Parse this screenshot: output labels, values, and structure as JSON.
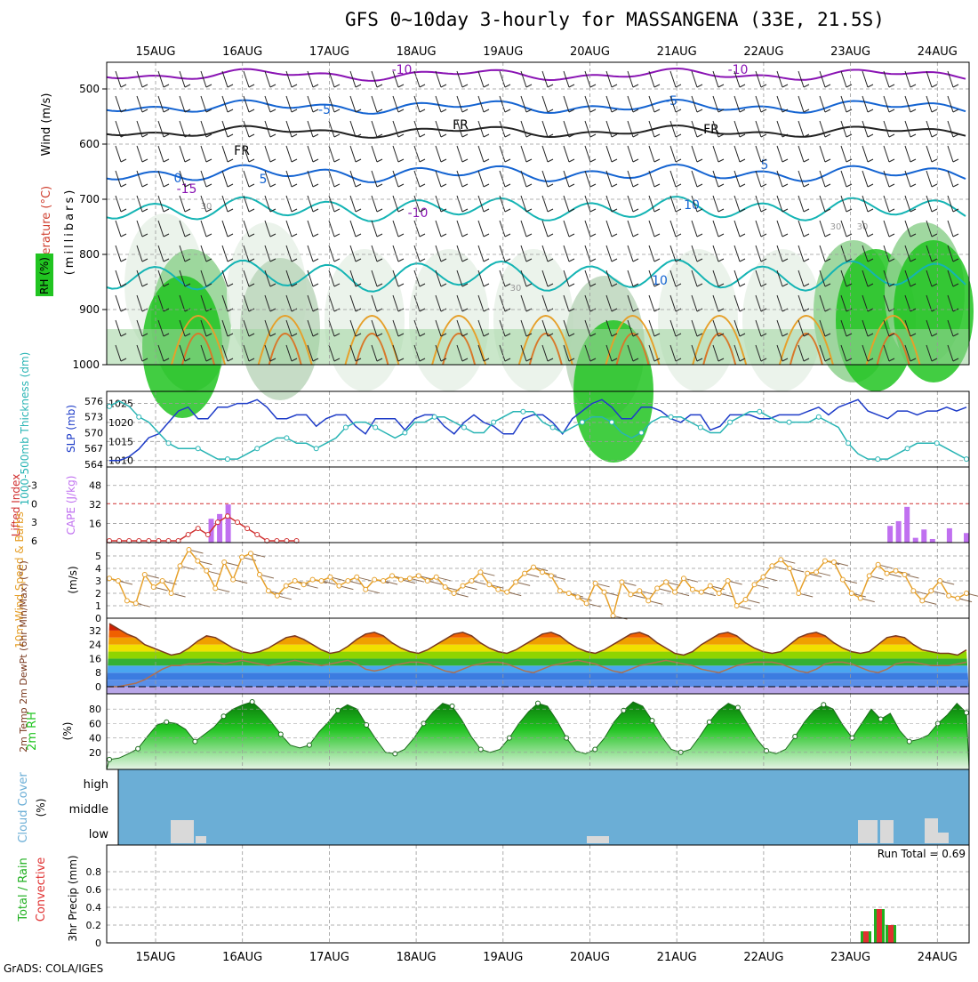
{
  "page": {
    "title": "GFS 0~10day 3-hourly for MASSANGENA (33E, 21.5S)",
    "footer": "GrADS: COLA/IGES"
  },
  "colors": {
    "rh_green": "#21c421",
    "temp_purple": "#8a14b4",
    "temp_blue": "#1464d2",
    "temp_cyan": "#14b4b4",
    "temp_orange": "#e6a02a",
    "slp_blue": "#1e3cc8",
    "thickness_cyan": "#28b4b4",
    "cape_purple": "#c070f0",
    "li_red": "#d03030",
    "wind_orange": "#e6a02a",
    "cloud_blue": "#6baed6",
    "cloud_gray": "#d9d9d9",
    "precip_green": "#20b020",
    "precip_red": "#e03030"
  },
  "chart_data": [
    {
      "id": "upper",
      "type": "contour-time-height",
      "date_labels": [
        "15AUG",
        "16AUG",
        "17AUG",
        "18AUG",
        "19AUG",
        "20AUG",
        "21AUG",
        "22AUG",
        "23AUG",
        "24AUG"
      ],
      "y_ticks": [
        "500",
        "600",
        "700",
        "800",
        "900",
        "1000"
      ],
      "y_values": [
        500,
        600,
        700,
        800,
        900,
        1000
      ],
      "ylabel_wind": "Wind (m/s)",
      "ylabel_temp": "Temperature (°C)",
      "ylabel_rh": "RH (%)",
      "ylabel_units": "(millibars)",
      "contour_labels": [
        "-10",
        "-10",
        "-5",
        "-5",
        "FR",
        "FR",
        "FR",
        "0",
        "5",
        "5",
        "-10",
        "10",
        "10",
        "-15",
        "30",
        "30",
        "30",
        "30"
      ],
      "temp_levels": [
        -10,
        -5,
        0,
        5,
        10,
        15
      ]
    },
    {
      "id": "slp",
      "type": "line",
      "ylabel_left": "1000-500mb Thickness (dm)",
      "ylabel_right": "SLP (mb)",
      "left_ticks": [
        "576",
        "573",
        "570",
        "567",
        "564"
      ],
      "right_ticks": [
        "1025",
        "1020",
        "1015",
        "1010"
      ],
      "slp": [
        1010,
        1010,
        1011,
        1013,
        1016,
        1017,
        1020,
        1023,
        1024,
        1021,
        1021,
        1024,
        1024,
        1025,
        1025,
        1026,
        1024,
        1021,
        1021,
        1022,
        1022,
        1019,
        1021,
        1022,
        1022,
        1019,
        1017,
        1021,
        1021,
        1021,
        1018,
        1021,
        1022,
        1022,
        1019,
        1017,
        1020,
        1022,
        1020,
        1019,
        1017,
        1017,
        1021,
        1022,
        1022,
        1020,
        1017,
        1021,
        1023,
        1025,
        1026,
        1024,
        1021,
        1021,
        1024,
        1024,
        1023,
        1021,
        1020,
        1022,
        1022,
        1018,
        1019,
        1022,
        1022,
        1022,
        1021,
        1021,
        1022,
        1022,
        1022,
        1023,
        1024,
        1022,
        1024,
        1025,
        1026,
        1023,
        1022,
        1021,
        1023,
        1023,
        1022,
        1023,
        1023,
        1024,
        1023,
        1024
      ],
      "thickness": [
        575,
        576,
        575,
        573,
        572,
        570,
        568,
        567,
        567,
        567,
        566,
        565,
        565,
        565,
        566,
        567,
        568,
        569,
        569,
        568,
        568,
        567,
        568,
        569,
        571,
        572,
        572,
        571,
        570,
        569,
        570,
        572,
        572,
        573,
        573,
        572,
        571,
        570,
        570,
        572,
        573,
        574,
        574,
        574,
        572,
        571,
        570,
        571,
        572,
        573,
        573,
        572,
        570,
        569,
        570,
        572,
        573,
        573,
        573,
        572,
        571,
        570,
        570,
        572,
        573,
        574,
        574,
        573,
        572,
        572,
        572,
        572,
        573,
        572,
        571,
        568,
        566,
        565,
        565,
        565,
        566,
        567,
        568,
        568,
        568,
        567,
        566,
        565
      ]
    },
    {
      "id": "cape",
      "type": "bar+line",
      "ylabel_left": "Lifted Index",
      "ylabel_right": "CAPE (J/kg)",
      "li_ticks": [
        "-3",
        "0",
        "3",
        "6"
      ],
      "cape_ticks": [
        "48",
        "32",
        "16"
      ],
      "cape": [
        0,
        0,
        0,
        0,
        0,
        0,
        0,
        0,
        0,
        0,
        0,
        0,
        20,
        24,
        32,
        0,
        0,
        0,
        0,
        0,
        0,
        0,
        0,
        0,
        0,
        0,
        0,
        0,
        0,
        0,
        0,
        0,
        0,
        0,
        0,
        0,
        0,
        0,
        0,
        0,
        0,
        0,
        0,
        0,
        0,
        0,
        0,
        0,
        0,
        0,
        0,
        0,
        0,
        0,
        0,
        0,
        0,
        0,
        0,
        0,
        0,
        0,
        0,
        0,
        0,
        0,
        0,
        0,
        0,
        0,
        0,
        0,
        0,
        0,
        0,
        0,
        0,
        0,
        0,
        0,
        0,
        0,
        0,
        0,
        0,
        0,
        0,
        0,
        0,
        0,
        0,
        0,
        14,
        18,
        30,
        4,
        11,
        3,
        0,
        12,
        0,
        8
      ],
      "li": [
        6,
        6,
        6,
        6,
        6,
        6,
        6,
        6,
        5,
        4,
        5,
        3,
        2,
        3,
        4,
        5,
        6,
        6,
        6,
        6,
        6,
        6,
        6,
        6,
        6,
        6,
        6,
        6,
        6,
        6,
        6,
        6,
        6,
        6,
        6,
        6,
        6,
        6,
        6,
        6,
        6,
        6,
        6,
        6,
        6,
        6,
        6,
        6,
        6,
        6,
        6,
        6,
        6,
        6,
        6,
        6,
        6,
        6,
        6,
        6,
        6,
        6,
        6,
        6,
        6,
        6,
        6,
        6,
        6,
        6,
        6,
        6,
        6,
        6,
        6,
        6,
        6,
        6,
        6,
        6,
        6,
        6,
        6,
        6,
        6,
        6,
        6,
        6
      ]
    },
    {
      "id": "wind10m",
      "type": "line",
      "ylabel": "10m Wind Speed & Barbs",
      "units": "(m/s)",
      "ticks": [
        "5",
        "4",
        "3",
        "2",
        "1",
        "0"
      ],
      "speed": [
        3.2,
        3.0,
        1.4,
        1.2,
        3.5,
        2.5,
        3.0,
        2.0,
        4.2,
        5.5,
        4.6,
        3.8,
        2.4,
        4.5,
        3.1,
        4.9,
        5.2,
        3.5,
        2.2,
        1.8,
        2.6,
        3.0,
        2.7,
        3.1,
        3.0,
        3.3,
        2.6,
        3.0,
        3.3,
        2.3,
        3.1,
        3.0,
        3.4,
        3.1,
        3.2,
        3.4,
        3.0,
        3.3,
        2.5,
        2.0,
        2.6,
        3.0,
        3.7,
        2.7,
        2.3,
        2.1,
        2.9,
        3.6,
        4.1,
        3.7,
        3.4,
        2.2,
        2.0,
        1.7,
        1.2,
        2.8,
        2.1,
        0.2,
        2.9,
        1.9,
        2.2,
        1.4,
        2.4,
        2.9,
        2.1,
        3.2,
        2.3,
        2.1,
        2.6,
        2.0,
        3.0,
        1.0,
        1.5,
        2.7,
        3.3,
        4.2,
        4.7,
        4.0,
        2.0,
        3.6,
        3.7,
        4.6,
        4.5,
        3.1,
        2.0,
        1.6,
        3.4,
        4.3,
        3.6,
        3.8,
        3.5,
        2.2,
        1.4,
        2.2,
        3.0,
        1.8,
        1.6,
        2.0
      ]
    },
    {
      "id": "temp2m",
      "type": "area",
      "ylabel": "2m Temp 2m DewPt (6hr Min/Max) (°C)",
      "ticks": [
        "32",
        "24",
        "16",
        "8",
        "0"
      ],
      "temp": [
        36,
        33,
        30,
        28,
        24,
        22,
        20,
        18,
        19,
        22,
        26,
        29,
        28,
        25,
        22,
        20,
        19,
        20,
        22,
        25,
        28,
        29,
        27,
        24,
        21,
        19,
        20,
        23,
        27,
        30,
        31,
        29,
        25,
        22,
        20,
        19,
        21,
        24,
        27,
        30,
        31,
        29,
        25,
        22,
        20,
        19,
        21,
        24,
        27,
        30,
        31,
        29,
        25,
        22,
        20,
        19,
        21,
        24,
        27,
        30,
        31,
        29,
        25,
        22,
        19,
        18,
        20,
        24,
        27,
        30,
        31,
        29,
        25,
        22,
        20,
        19,
        20,
        24,
        28,
        30,
        31,
        29,
        25,
        22,
        20,
        19,
        20,
        24,
        28,
        29,
        28,
        24,
        21,
        20,
        19,
        19,
        18,
        21
      ],
      "dewpoint": [
        0,
        0,
        1,
        2,
        4,
        7,
        10,
        12,
        12,
        13,
        13,
        14,
        14,
        13,
        14,
        15,
        14,
        13,
        12,
        13,
        14,
        15,
        14,
        13,
        12,
        13,
        14,
        15,
        13,
        10,
        9,
        10,
        12,
        13,
        14,
        14,
        13,
        11,
        9,
        8,
        10,
        12,
        13,
        14,
        14,
        13,
        11,
        9,
        8,
        10,
        12,
        13,
        14,
        15,
        14,
        13,
        11,
        9,
        8,
        10,
        12,
        13,
        14,
        15,
        14,
        13,
        12,
        10,
        9,
        8,
        10,
        12,
        13,
        14,
        14,
        14,
        13,
        11,
        9,
        8,
        10,
        13,
        14,
        14,
        13,
        11,
        9,
        8,
        10,
        13,
        14,
        14,
        13,
        12,
        12,
        12,
        13,
        14
      ]
    },
    {
      "id": "rh2m",
      "type": "area",
      "ylabel": "2m RH",
      "units": "(%)",
      "ticks": [
        "80",
        "60",
        "40",
        "20"
      ],
      "rh": [
        10,
        12,
        18,
        25,
        42,
        58,
        62,
        60,
        52,
        35,
        45,
        55,
        70,
        80,
        86,
        90,
        78,
        62,
        45,
        30,
        26,
        30,
        48,
        62,
        78,
        86,
        80,
        58,
        38,
        20,
        18,
        24,
        40,
        60,
        76,
        88,
        84,
        65,
        42,
        24,
        20,
        24,
        40,
        60,
        76,
        88,
        84,
        64,
        40,
        22,
        18,
        24,
        40,
        62,
        78,
        90,
        84,
        64,
        42,
        24,
        20,
        24,
        42,
        62,
        78,
        88,
        82,
        60,
        38,
        22,
        18,
        24,
        42,
        62,
        78,
        86,
        80,
        58,
        40,
        60,
        80,
        66,
        74,
        50,
        35,
        38,
        44,
        60,
        72,
        88,
        75
      ]
    },
    {
      "id": "cloud",
      "type": "bar",
      "ylabel": "Cloud Cover",
      "units": "(%)",
      "layers": [
        "high",
        "middle",
        "low"
      ]
    },
    {
      "id": "precip",
      "type": "bar",
      "ylabel": "3hr Precip (mm)",
      "legend_total": "Total / Rain",
      "legend_conv": "Convective",
      "run_total": "Run Total = 0.69",
      "ticks": [
        "0.8",
        "0.6",
        "0.4",
        "0.2",
        "0"
      ],
      "ylim": [
        0,
        1.0
      ]
    }
  ]
}
